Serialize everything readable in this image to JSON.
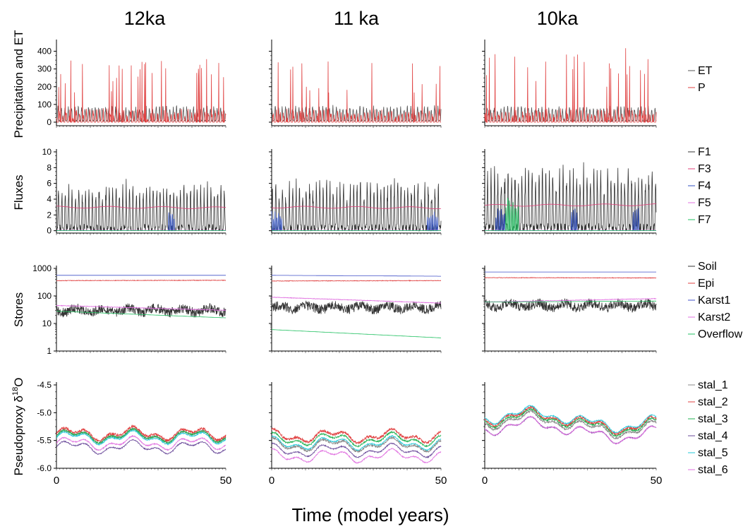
{
  "figure": {
    "columns": [
      "12ka",
      "11 ka",
      "10ka"
    ],
    "xlabel": "Time (model years)",
    "xticks": [
      "0",
      "50"
    ]
  },
  "chart_data": [
    {
      "id": "precip",
      "type": "line",
      "ylabel": "Precipitation and ET",
      "yscale": "linear",
      "ylim": [
        -20,
        450
      ],
      "yticks": [
        0,
        100,
        200,
        300,
        400
      ],
      "ytick_labels": [
        "0",
        "100",
        "200",
        "300",
        "400"
      ],
      "xlim": [
        0,
        50
      ],
      "series": [
        {
          "name": "ET",
          "color": "#555555",
          "kind": "seasonal",
          "base": [
            8,
            8,
            8
          ],
          "amp": [
            70,
            70,
            70
          ],
          "noise": 6,
          "period": 1
        },
        {
          "name": "P",
          "color": "#e04040",
          "kind": "spiky",
          "base": [
            0,
            0,
            0
          ],
          "amp": [
            80,
            80,
            80
          ],
          "spike": [
            360,
            340,
            390
          ],
          "noise": 40,
          "period": 1
        }
      ],
      "legend": [
        "ET",
        "P"
      ],
      "legend_position": "right"
    },
    {
      "id": "fluxes",
      "type": "line",
      "ylabel": "Fluxes",
      "yscale": "linear",
      "ylim": [
        -0.3,
        10
      ],
      "yticks": [
        0,
        2,
        4,
        6,
        8,
        10
      ],
      "ytick_labels": [
        "0",
        "2",
        "4",
        "6",
        "8",
        "10"
      ],
      "xlim": [
        0,
        50
      ],
      "series": [
        {
          "name": "F1",
          "color": "#333333",
          "kind": "seasonal",
          "base": [
            0.2,
            0.2,
            0.3
          ],
          "amp": [
            4.8,
            5.0,
            6.5
          ],
          "noise": 1.3,
          "period": 1
        },
        {
          "name": "F3",
          "color": "#e0407a",
          "kind": "smooth",
          "start": [
            3.0,
            3.0,
            3.2
          ],
          "end": [
            2.9,
            2.9,
            3.3
          ],
          "noise": 0.12
        },
        {
          "name": "F4",
          "color": "#3050c0",
          "kind": "bursts",
          "height": [
            3.0,
            2.8,
            3.0
          ],
          "windows": [
            [
              [
                33,
                35
              ]
            ],
            [
              [
                0,
                3
              ],
              [
                46,
                49
              ]
            ],
            [
              [
                3,
                6
              ],
              [
                25,
                27
              ],
              [
                43,
                45
              ]
            ]
          ]
        },
        {
          "name": "F5",
          "color": "#e070e0",
          "kind": "flat",
          "value": [
            0.05,
            0.05,
            0.05
          ]
        },
        {
          "name": "F7",
          "color": "#20c060",
          "kind": "bursts",
          "height": [
            0.1,
            0.1,
            5.0
          ],
          "windows": [
            [],
            [],
            [
              [
                6,
                10
              ]
            ]
          ]
        }
      ],
      "legend": [
        "F1",
        "F3",
        "F4",
        "F5",
        "F7"
      ],
      "legend_position": "right"
    },
    {
      "id": "stores",
      "type": "line",
      "ylabel": "Stores",
      "yscale": "log",
      "ylim": [
        1,
        1000
      ],
      "yticks": [
        1,
        10,
        100,
        1000
      ],
      "ytick_labels": [
        "1",
        "10",
        "100",
        "1000"
      ],
      "xlim": [
        0,
        50
      ],
      "series": [
        {
          "name": "Soil",
          "color": "#333333",
          "kind": "lognoise",
          "level": [
            30,
            38,
            45
          ],
          "noise": 0.35
        },
        {
          "name": "Epi",
          "color": "#e04040",
          "kind": "logsmooth",
          "start": [
            360,
            350,
            460
          ],
          "end": [
            370,
            360,
            450
          ],
          "noise": 0.02
        },
        {
          "name": "Karst1",
          "color": "#4050c8",
          "kind": "logsmooth",
          "start": [
            560,
            560,
            740
          ],
          "end": [
            560,
            520,
            740
          ],
          "noise": 0.0
        },
        {
          "name": "Karst2",
          "color": "#e070e0",
          "kind": "logsmooth",
          "start": [
            45,
            90,
            60
          ],
          "end": [
            30,
            55,
            80
          ],
          "noise": 0.02
        },
        {
          "name": "Overflow",
          "color": "#20c060",
          "kind": "logsmooth",
          "start": [
            28,
            6,
            60
          ],
          "end": [
            16,
            3,
            65
          ],
          "noise": 0.0
        }
      ],
      "legend": [
        "Soil",
        "Epi",
        "Karst1",
        "Karst2",
        "Overflow"
      ],
      "legend_position": "right"
    },
    {
      "id": "proxy",
      "type": "line",
      "ylabel": "Pseudoproxy δ18O",
      "ylabel_parts": {
        "main": "Pseudoproxy δ",
        "sup": "18",
        "tail": "O"
      },
      "yscale": "linear",
      "ylim": [
        -6.0,
        -4.5
      ],
      "yticks": [
        -6.0,
        -5.5,
        -5.0,
        -4.5
      ],
      "ytick_labels": [
        "-6.0",
        "-5.5",
        "-5.0",
        "-4.5"
      ],
      "xlim": [
        0,
        50
      ],
      "series": [
        {
          "name": "stal_1",
          "color": "#888888",
          "kind": "wave",
          "offset": [
            -5.42,
            -5.58,
            -5.22
          ],
          "noise": 0.04
        },
        {
          "name": "stal_2",
          "color": "#e04040",
          "kind": "wave",
          "offset": [
            -5.38,
            -5.42,
            -5.15
          ],
          "noise": 0.05
        },
        {
          "name": "stal_3",
          "color": "#20b050",
          "kind": "wave",
          "offset": [
            -5.42,
            -5.48,
            -5.18
          ],
          "noise": 0.03
        },
        {
          "name": "stal_4",
          "color": "#6a4a9a",
          "kind": "wave",
          "offset": [
            -5.62,
            -5.68,
            -5.32
          ],
          "noise": 0.02
        },
        {
          "name": "stal_5",
          "color": "#20c8d8",
          "kind": "wave",
          "offset": [
            -5.45,
            -5.55,
            -5.12
          ],
          "noise": 0.02
        },
        {
          "name": "stal_6",
          "color": "#e070e0",
          "kind": "wave",
          "offset": [
            -5.55,
            -5.78,
            -5.32
          ],
          "noise": 0.02
        }
      ],
      "legend": [
        "stal_1",
        "stal_2",
        "stal_3",
        "stal_4",
        "stal_5",
        "stal_6"
      ],
      "legend_position": "right"
    }
  ]
}
